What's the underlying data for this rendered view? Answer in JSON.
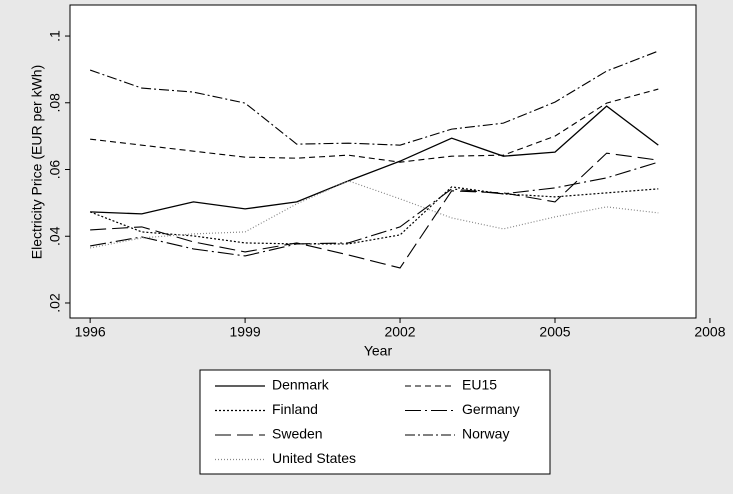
{
  "chart_data": {
    "type": "line",
    "x_label": "Year",
    "y_label": "Electricity Price (EUR per kWh)",
    "x": [
      1996,
      1997,
      1998,
      1999,
      2000,
      2001,
      2002,
      2003,
      2004,
      2005,
      2006,
      2007
    ],
    "xlim": [
      1995.61,
      2007.73
    ],
    "xticks": [
      1996,
      1999,
      2002,
      2005,
      2008
    ],
    "ylim": [
      0.0155,
      0.1093
    ],
    "yticks": [
      {
        "value": 0.02,
        "label": ".02"
      },
      {
        "value": 0.04,
        "label": ".04"
      },
      {
        "value": 0.06,
        "label": ".06"
      },
      {
        "value": 0.08,
        "label": ".08"
      },
      {
        "value": 0.1,
        "label": ".1"
      }
    ],
    "series": [
      {
        "name": "Denmark",
        "color": "#000000",
        "dash": "none",
        "width": 1.3,
        "values": [
          0.0473,
          0.0467,
          0.0503,
          0.0482,
          0.0503,
          0.0566,
          0.0625,
          0.0694,
          0.064,
          0.0652,
          0.079,
          0.0673
        ]
      },
      {
        "name": "EU15",
        "color": "#000000",
        "dash": "6 4",
        "width": 1.1,
        "values": [
          0.0691,
          0.0673,
          0.0655,
          0.0637,
          0.0634,
          0.0643,
          0.0622,
          0.064,
          0.0643,
          0.07,
          0.0799,
          0.0841
        ]
      },
      {
        "name": "Finland",
        "color": "#000000",
        "dash": "2 2",
        "width": 1.2,
        "values": [
          0.0473,
          0.0413,
          0.0401,
          0.038,
          0.0377,
          0.0377,
          0.0404,
          0.0548,
          0.0527,
          0.0518,
          0.053,
          0.0542
        ]
      },
      {
        "name": "Germany",
        "color": "#000000",
        "dash": "16 4 2 4",
        "width": 1.1,
        "values": [
          0.0371,
          0.0398,
          0.0362,
          0.0341,
          0.0377,
          0.038,
          0.0428,
          0.0542,
          0.0527,
          0.0545,
          0.0575,
          0.0622
        ]
      },
      {
        "name": "Sweden",
        "color": "#000000",
        "dash": "16 6",
        "width": 1.1,
        "values": [
          0.0419,
          0.0428,
          0.0383,
          0.0353,
          0.038,
          0.0344,
          0.0305,
          0.0536,
          0.053,
          0.0503,
          0.0649,
          0.0628
        ]
      },
      {
        "name": "Norway",
        "color": "#000000",
        "dash": "10 3 2 3",
        "width": 1.1,
        "values": [
          0.0898,
          0.0844,
          0.0832,
          0.0799,
          0.0676,
          0.0679,
          0.0673,
          0.0721,
          0.0739,
          0.0802,
          0.0895,
          0.0955
        ]
      },
      {
        "name": "United States",
        "color": "#888888",
        "dash": "1 2",
        "width": 1.2,
        "values": [
          0.0365,
          0.0395,
          0.0407,
          0.0413,
          0.0497,
          0.0566,
          0.0512,
          0.0455,
          0.0422,
          0.0458,
          0.0488,
          0.047
        ]
      }
    ]
  }
}
